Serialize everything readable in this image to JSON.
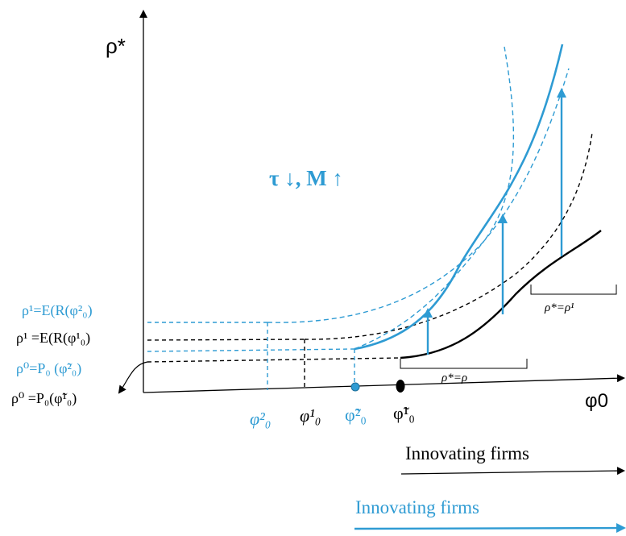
{
  "colors": {
    "blue": "#2e9bd3",
    "black": "#000000"
  },
  "axes": {
    "y_label": "ρ*",
    "x_label": "φ0"
  },
  "annotation": "τ ↓, M ↑",
  "left_labels": {
    "rho1_blue": "ρ¹=E(R(φ²₀)",
    "rho1_black": "ρ¹ =E(R(φ¹₀)",
    "rho0_blue": "ρ⁰=P₀ (φ̃²₀)",
    "rho0_black": "ρ⁰ =P₀(φ̃¹₀)"
  },
  "x_ticks": {
    "phi2_0": "φ²₀",
    "phi1_0": "φ¹₀",
    "phi2_tilde": "φ̃²₀",
    "phi1_tilde": "φ̃¹₀"
  },
  "brackets": {
    "lower": "ρ*=ρ",
    "upper": "ρ*=ρ¹"
  },
  "arrows_legend": {
    "black_label": "Innovating firms",
    "blue_label": "Innovating firms"
  }
}
